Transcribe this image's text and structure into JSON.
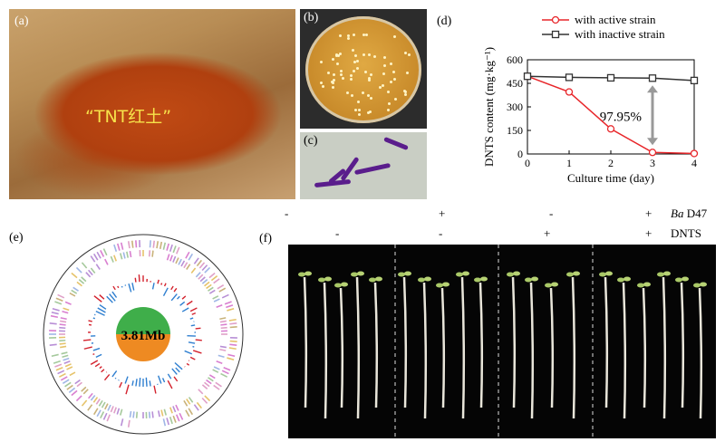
{
  "panels": {
    "a": {
      "label": "(a)",
      "photo_text": "“TNT红土”"
    },
    "b": {
      "label": "(b)"
    },
    "c": {
      "label": "(c)"
    },
    "d": {
      "label": "(d)"
    },
    "e": {
      "label": "(e)",
      "center_text": "3.81Mb"
    },
    "f": {
      "label": "(f)"
    }
  },
  "treatments": {
    "row1": {
      "name_italic": "Ba",
      "name_rest": " D47",
      "signs": [
        "-",
        "+",
        "-",
        "+"
      ]
    },
    "row2": {
      "name": "DNTS",
      "signs": [
        "-",
        "-",
        "+",
        "+"
      ]
    }
  },
  "chart_data": {
    "type": "line",
    "xlabel": "Culture time (day)",
    "ylabel": "DNTS content (mg·kg⁻¹)",
    "x": [
      0,
      1,
      2,
      3,
      4
    ],
    "xlim": [
      0,
      4
    ],
    "ylim": [
      0,
      600
    ],
    "yticks": [
      0,
      150,
      300,
      450,
      600
    ],
    "xticks": [
      0,
      1,
      2,
      3,
      4
    ],
    "legend_position": "top-right",
    "annotation": "97.95%",
    "series": [
      {
        "name": "with active strain",
        "values": [
          495,
          395,
          160,
          10,
          3
        ],
        "color": "#e8262a",
        "marker": "circle"
      },
      {
        "name": "with inactive strain",
        "values": [
          495,
          488,
          485,
          483,
          468
        ],
        "color": "#333333",
        "marker": "square"
      }
    ]
  }
}
